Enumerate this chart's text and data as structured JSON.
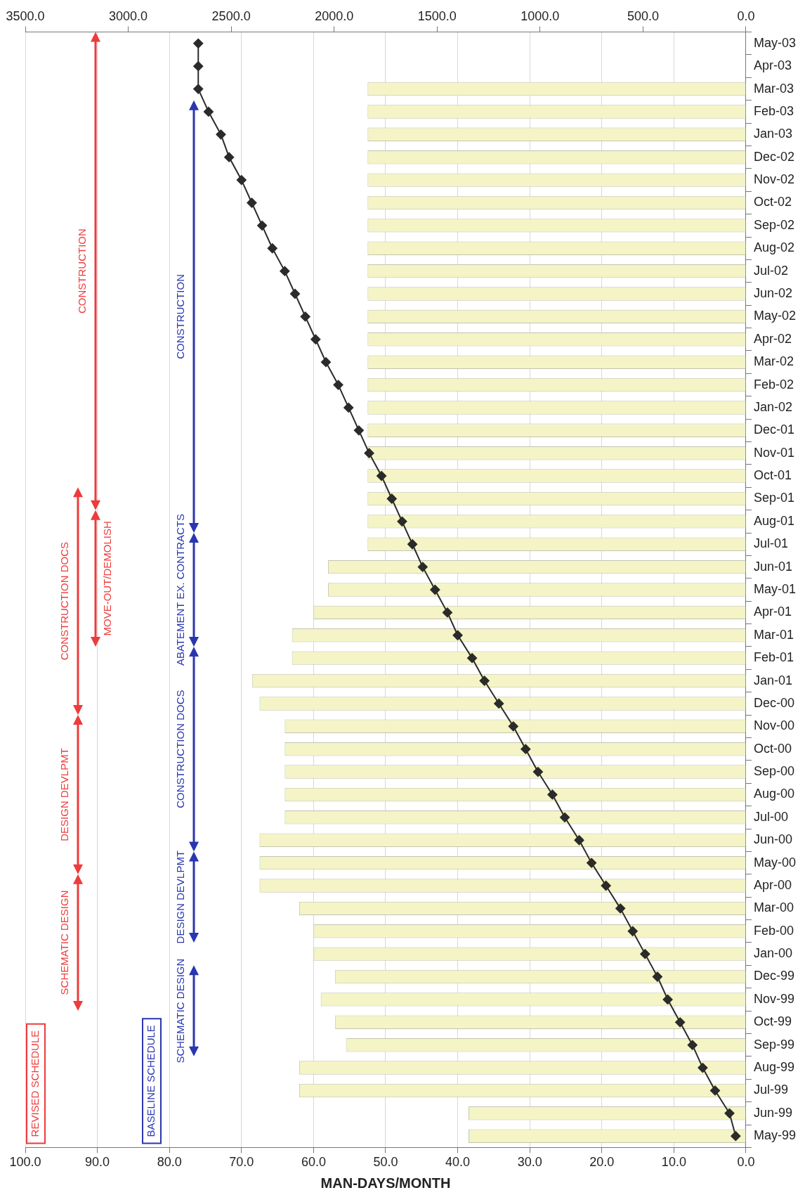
{
  "chart_data": {
    "type": "bar",
    "orientation": "horizontal",
    "categories": [
      "May-03",
      "Apr-03",
      "Mar-03",
      "Feb-03",
      "Jan-03",
      "Dec-02",
      "Nov-02",
      "Oct-02",
      "Sep-02",
      "Aug-02",
      "Jul-02",
      "Jun-02",
      "May-02",
      "Apr-02",
      "Mar-02",
      "Feb-02",
      "Jan-02",
      "Dec-01",
      "Nov-01",
      "Oct-01",
      "Sep-01",
      "Aug-01",
      "Jul-01",
      "Jun-01",
      "May-01",
      "Apr-01",
      "Mar-01",
      "Feb-01",
      "Jan-01",
      "Dec-00",
      "Nov-00",
      "Oct-00",
      "Sep-00",
      "Aug-00",
      "Jul-00",
      "Jun-00",
      "May-00",
      "Apr-00",
      "Mar-00",
      "Feb-00",
      "Jan-00",
      "Dec-99",
      "Nov-99",
      "Oct-99",
      "Sep-99",
      "Aug-99",
      "Jul-99",
      "Jun-99",
      "May-99"
    ],
    "series": [
      {
        "color": "#f4f4c6",
        "values": [
          null,
          null,
          52.5,
          52.5,
          52.5,
          52.5,
          52.5,
          52.5,
          52.5,
          52.5,
          52.5,
          52.5,
          52.5,
          52.5,
          52.5,
          52.5,
          52.5,
          52.5,
          52.5,
          52.5,
          52.5,
          52.5,
          52.5,
          58,
          58,
          60,
          63,
          63,
          68.5,
          67.5,
          64,
          64,
          64,
          64,
          64,
          67.5,
          67.5,
          67.5,
          62,
          60,
          60,
          57,
          59,
          57,
          55.5,
          62,
          62,
          38.5,
          38.5
        ]
      },
      {
        "type": "line",
        "axis": "x2",
        "color": "#2b2b2b",
        "values": [
          2660,
          2660,
          2660,
          2610,
          2550,
          2510,
          2450,
          2400,
          2350,
          2300,
          2240,
          2190,
          2140,
          2090,
          2040,
          1980,
          1930,
          1880,
          1830,
          1770,
          1720,
          1670,
          1620,
          1570,
          1510,
          1450,
          1400,
          1330,
          1270,
          1200,
          1130,
          1070,
          1010,
          940,
          880,
          810,
          750,
          680,
          610,
          550,
          490,
          430,
          380,
          320,
          260,
          210,
          150,
          80,
          50
        ]
      }
    ],
    "xlabel": "MAN-DAYS/MONTH",
    "xlim": [
      100,
      0
    ],
    "xticks": [
      {
        "value": 100,
        "label": "100.0"
      },
      {
        "value": 90,
        "label": "90.0"
      },
      {
        "value": 80,
        "label": "80.0"
      },
      {
        "value": 70,
        "label": "70.0"
      },
      {
        "value": 60,
        "label": "60.0"
      },
      {
        "value": 50,
        "label": "50.0"
      },
      {
        "value": 40,
        "label": "40.0"
      },
      {
        "value": 30,
        "label": "30.0"
      },
      {
        "value": 20,
        "label": "20.0"
      },
      {
        "value": 10,
        "label": "10.0"
      },
      {
        "value": 0,
        "label": "0.0"
      }
    ],
    "x2lim": [
      3500,
      0
    ],
    "x2ticks": [
      {
        "value": 3500,
        "label": "3500.0"
      },
      {
        "value": 3000,
        "label": "3000.0"
      },
      {
        "value": 2500,
        "label": "2500.0"
      },
      {
        "value": 2000,
        "label": "2000.0"
      },
      {
        "value": 1500,
        "label": "1500.0"
      },
      {
        "value": 1000,
        "label": "1000.0"
      },
      {
        "value": 500,
        "label": "500.0"
      },
      {
        "value": 0,
        "label": "0.0"
      }
    ],
    "grid": "x",
    "legend": false,
    "marker": "diamond",
    "line_style": "solid",
    "annotations": [
      "REVISED SCHEDULE",
      "BASELINE SCHEDULE",
      "SCHEMATIC DESIGN",
      "DESIGN DEVLPMT",
      "CONSTRUCTION DOCS",
      "MOVE-OUT/DEMOLISH",
      "CONSTRUCTION",
      "SCHEMATIC DESIGN",
      "DESIGN DEVLPMT",
      "CONSTRUCTION DOCS",
      "ABATEMENT EX. CONTRACTS",
      "CONSTRUCTION"
    ]
  }
}
